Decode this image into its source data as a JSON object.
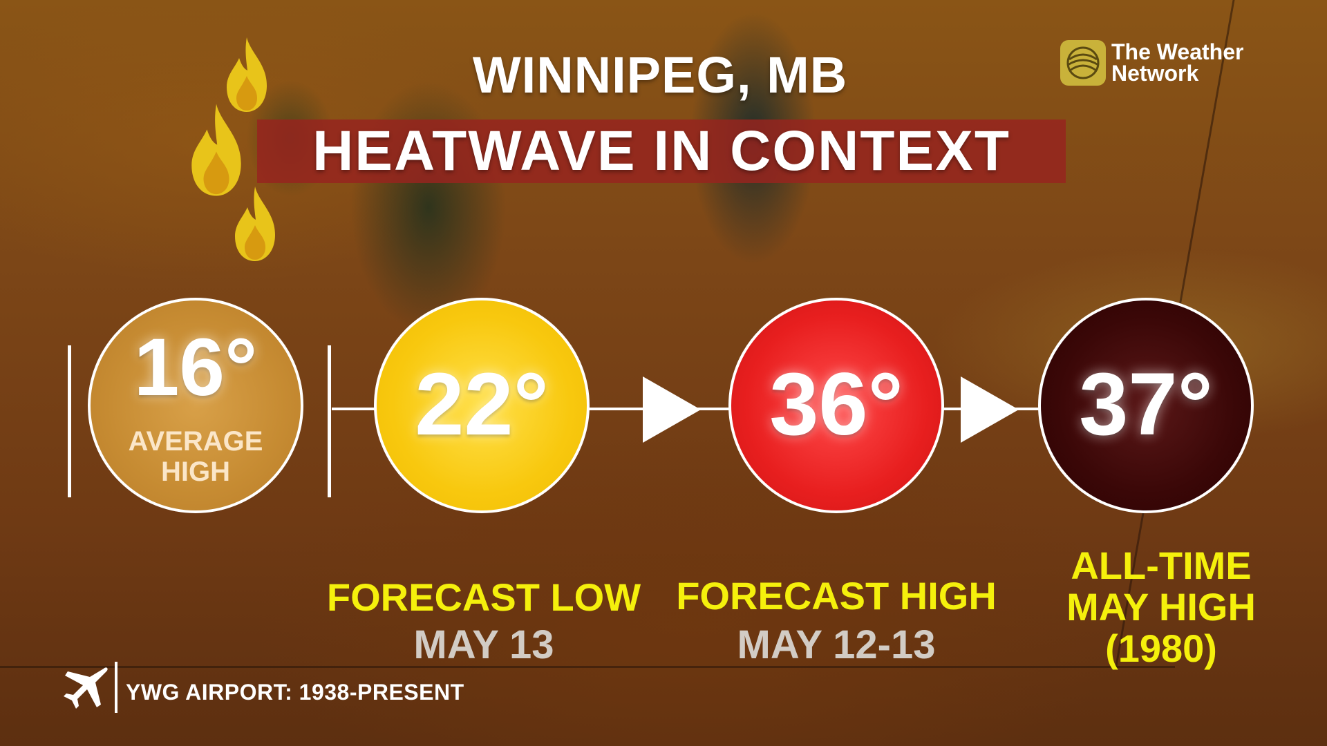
{
  "header": {
    "title": "WINNIPEG, MB",
    "subtitle": "HEATWAVE IN CONTEXT"
  },
  "brand": {
    "line1": "The Weather",
    "line2": "Network",
    "logo_icon": "weather-network-logo-icon"
  },
  "decor": {
    "icon": "flame-icon",
    "count": 3
  },
  "temperatures": [
    {
      "value": "16°",
      "label_line1": "AVERAGE",
      "label_line2": "HIGH",
      "color": "#c68b32"
    },
    {
      "value": "22°",
      "caption": "FORECAST LOW",
      "date": "MAY 13",
      "color": "#f8c80e"
    },
    {
      "value": "36°",
      "caption": "FORECAST HIGH",
      "date": "MAY 12-13",
      "color": "#e81f1f"
    },
    {
      "value": "37°",
      "caption_line1": "ALL-TIME",
      "caption_line2": "MAY HIGH",
      "caption_line3": "(1980)",
      "color": "#3a0707"
    }
  ],
  "footer": {
    "icon": "airplane-icon",
    "text": "YWG AIRPORT: 1938-PRESENT"
  }
}
